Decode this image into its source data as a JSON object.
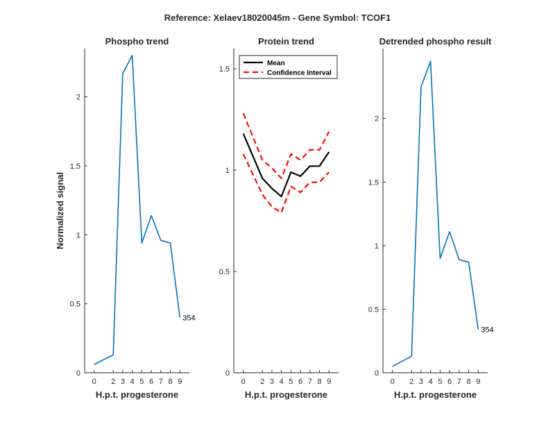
{
  "figure_title": "Reference:  Xelaev18020045m - Gene Symbol:  TCOF1",
  "chart_data": [
    {
      "type": "line",
      "title": "Phospho trend",
      "xlabel": "H.p.t. progesterone",
      "ylabel": "Normalized signal",
      "x": [
        0,
        2,
        3,
        4,
        5,
        6,
        7,
        8,
        9
      ],
      "xticks": [
        0,
        2,
        3,
        4,
        5,
        6,
        7,
        8,
        9
      ],
      "xtick_labels": [
        "0",
        "2",
        "3",
        "4",
        "5",
        "6",
        "7",
        "8",
        "9"
      ],
      "xlim": [
        -1,
        10
      ],
      "ylim": [
        0,
        2.35
      ],
      "yticks": [
        0,
        0.5,
        1,
        1.5,
        2
      ],
      "ytick_labels": [
        "0",
        "0.5",
        "1",
        "1.5",
        "2"
      ],
      "series": [
        {
          "values": [
            0.06,
            0.13,
            2.17,
            2.3,
            0.94,
            1.14,
            0.96,
            0.94,
            0.4
          ],
          "color": "#0072bd",
          "style": "solid"
        }
      ],
      "annotation": {
        "text": "354",
        "x": 9,
        "y": 0.4
      }
    },
    {
      "type": "line",
      "title": "Protein trend",
      "xlabel": "H.p.t. progesterone",
      "ylabel": "",
      "x": [
        0,
        2,
        3,
        4,
        5,
        6,
        7,
        8,
        9
      ],
      "xticks": [
        0,
        2,
        3,
        4,
        5,
        6,
        7,
        8,
        9
      ],
      "xtick_labels": [
        "0",
        "2",
        "3",
        "4",
        "5",
        "6",
        "7",
        "8",
        "9"
      ],
      "xlim": [
        -1,
        10
      ],
      "ylim": [
        0,
        1.6
      ],
      "yticks": [
        0,
        0.5,
        1,
        1.5
      ],
      "ytick_labels": [
        "0",
        "0.5",
        "1",
        "1.5"
      ],
      "series": [
        {
          "name": "Mean",
          "values": [
            1.18,
            0.96,
            0.91,
            0.87,
            0.99,
            0.97,
            1.02,
            1.02,
            1.09
          ],
          "color": "#000000",
          "style": "solid"
        },
        {
          "name": "Confidence Interval",
          "values": [
            1.28,
            1.05,
            1.01,
            0.96,
            1.08,
            1.05,
            1.1,
            1.1,
            1.19
          ],
          "color": "#ff0000",
          "style": "dashed"
        },
        {
          "values": [
            1.08,
            0.88,
            0.82,
            0.79,
            0.92,
            0.89,
            0.94,
            0.94,
            0.99
          ],
          "color": "#ff0000",
          "style": "dashed"
        }
      ],
      "legend": {
        "position": "top-left",
        "entries": [
          "Mean",
          "Confidence Interval"
        ]
      }
    },
    {
      "type": "line",
      "title": "Detrended phospho result",
      "xlabel": "H.p.t. progesterone",
      "ylabel": "",
      "x": [
        0,
        2,
        3,
        4,
        5,
        6,
        7,
        8,
        9
      ],
      "xticks": [
        0,
        2,
        3,
        4,
        5,
        6,
        7,
        8,
        9
      ],
      "xtick_labels": [
        "0",
        "2",
        "3",
        "4",
        "5",
        "6",
        "7",
        "8",
        "9"
      ],
      "xlim": [
        -1,
        10
      ],
      "ylim": [
        0,
        2.55
      ],
      "yticks": [
        0,
        0.5,
        1,
        1.5,
        2
      ],
      "ytick_labels": [
        "0",
        "0.5",
        "1",
        "1.5",
        "2"
      ],
      "series": [
        {
          "values": [
            0.05,
            0.13,
            2.25,
            2.45,
            0.9,
            1.11,
            0.89,
            0.87,
            0.34
          ],
          "color": "#0072bd",
          "style": "solid"
        }
      ],
      "annotation": {
        "text": "354",
        "x": 9,
        "y": 0.34
      }
    }
  ]
}
